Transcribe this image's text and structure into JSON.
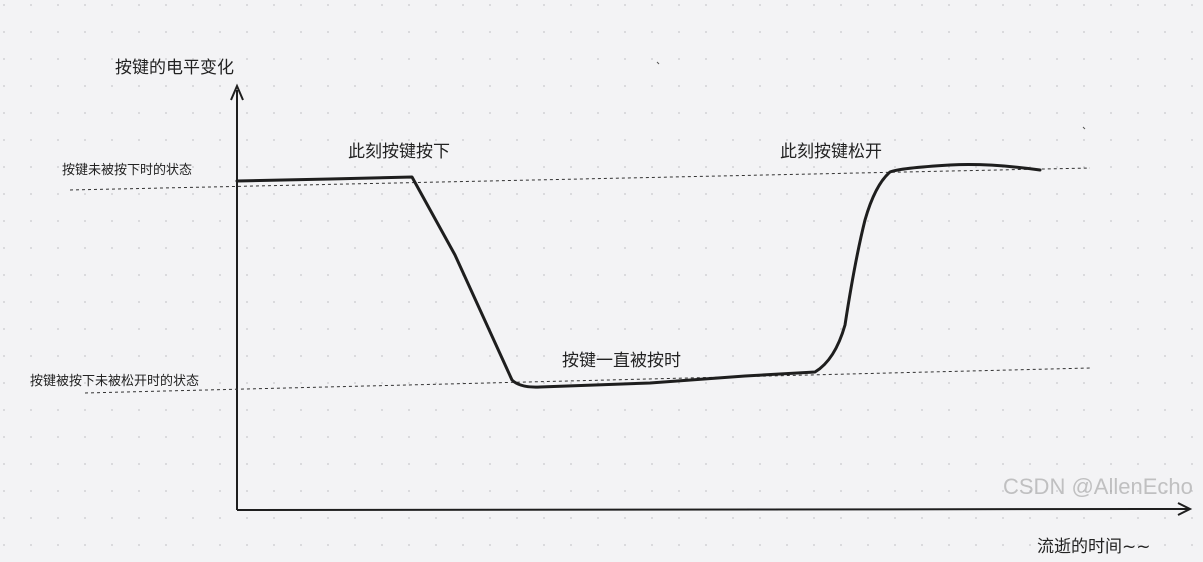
{
  "diagram": {
    "y_axis_label": "按键的电平变化",
    "x_axis_label": "流逝的时间~~",
    "annotations": {
      "released_state": "按键未被按下时的状态",
      "pressed_state": "按键被按下未被松开时的状态",
      "press_moment": "此刻按键按下",
      "release_moment": "此刻按键松开",
      "holding": "按键一直被按时"
    },
    "watermark": "CSDN @AllenEcho",
    "colors": {
      "background": "#f3f3f5",
      "stroke": "#1e1e1e",
      "grid_dot": "#c8c8cc"
    }
  }
}
